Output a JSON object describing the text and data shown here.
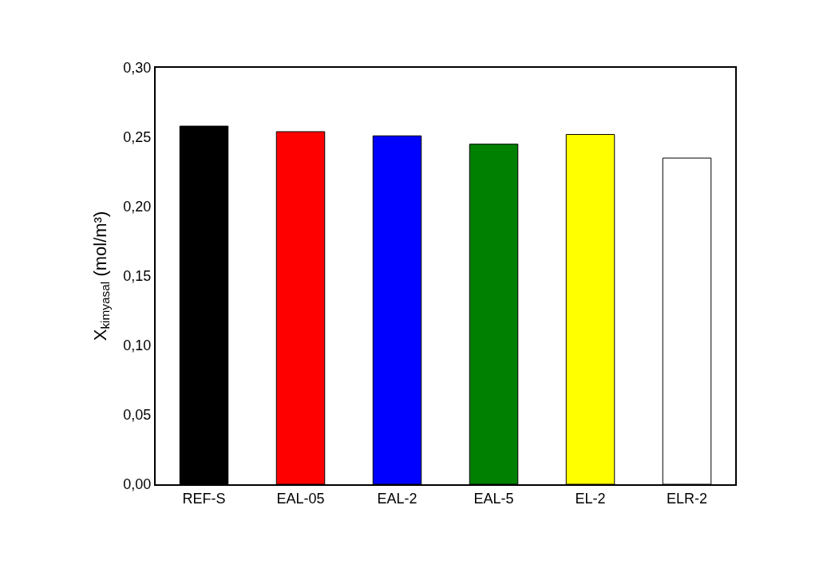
{
  "chart_data": {
    "type": "bar",
    "ylabel": "X$_{kimyasal}$ (mol/m³)",
    "categories": [
      "REF-S",
      "EAL-05",
      "EAL-2",
      "EAL-5",
      "EL-2",
      "ELR-2"
    ],
    "values": [
      0.258,
      0.254,
      0.251,
      0.245,
      0.252,
      0.235
    ],
    "colors": [
      "#000000",
      "#ff0000",
      "#0000ff",
      "#008000",
      "#ffff00",
      "#ffffff"
    ],
    "ylim": [
      0,
      0.3
    ],
    "yticks": [
      {
        "value": 0,
        "label": "0,00"
      },
      {
        "value": 0.05,
        "label": "0,05"
      },
      {
        "value": 0.1,
        "label": "0,10"
      },
      {
        "value": 0.15,
        "label": "0,15"
      },
      {
        "value": 0.2,
        "label": "0,20"
      },
      {
        "value": 0.25,
        "label": "0,25"
      },
      {
        "value": 0.3,
        "label": "0,30"
      }
    ]
  }
}
